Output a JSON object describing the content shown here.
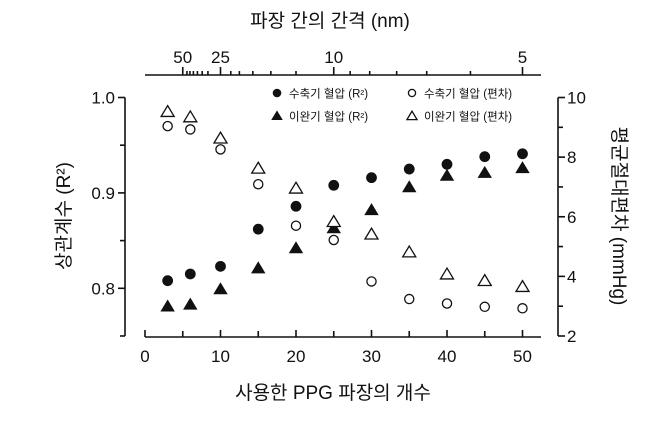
{
  "chart_data": {
    "type": "scatter",
    "title": "",
    "xlabel": "사용한 PPG 파장의 개수",
    "x2label": "파장 간의 간격 (nm)",
    "ylabel": "상관계수 (R²)",
    "y2label": "평균절대편차 (mmHg)",
    "xlim": [
      0,
      52
    ],
    "ylim": [
      0.75,
      1.0
    ],
    "y2lim": [
      2,
      10
    ],
    "x_ticks": [
      0,
      10,
      20,
      30,
      40,
      50
    ],
    "x_minor_ticks": [
      5,
      15,
      25,
      35,
      45
    ],
    "y_ticks": [
      "0.8",
      "0.9",
      "1.0"
    ],
    "y_minor_ticks": [
      0.75,
      0.85,
      0.95
    ],
    "y2_ticks": [
      2,
      4,
      6,
      8,
      10
    ],
    "y2_minor_ticks": [
      3,
      5,
      7,
      9
    ],
    "x2_relation": "x2 = 250 / x",
    "x2_ticks": [
      50,
      25,
      10,
      5
    ],
    "x2_minor_ticks": [
      45,
      42,
      39,
      36,
      33,
      30,
      22,
      20,
      17.5,
      15,
      12.5,
      9.2,
      8.4,
      7.5,
      6.7,
      5.8
    ],
    "grid": false,
    "legend_placement": "top-right",
    "x": [
      3,
      6,
      10,
      15,
      20,
      25,
      30,
      35,
      40,
      45,
      50
    ],
    "series": [
      {
        "name": "수축기 혈압 (R²)",
        "axis": "left",
        "marker": "filled-circle",
        "color": "#111111",
        "values": [
          0.808,
          0.815,
          0.823,
          0.862,
          0.886,
          0.908,
          0.916,
          0.925,
          0.93,
          0.938,
          0.941
        ]
      },
      {
        "name": "이완기 혈압 (R²)",
        "axis": "left",
        "marker": "filled-triangle",
        "color": "#111111",
        "values": [
          0.781,
          0.783,
          0.799,
          0.821,
          0.842,
          0.863,
          0.882,
          0.906,
          0.918,
          0.921,
          0.926
        ]
      },
      {
        "name": "수축기 혈압 (편차)",
        "axis": "right",
        "marker": "open-circle",
        "color": "#111111",
        "values": [
          9.04,
          8.93,
          8.26,
          7.09,
          5.7,
          5.22,
          3.83,
          3.24,
          3.09,
          2.98,
          2.93
        ]
      },
      {
        "name": "이완기 혈압 (편차)",
        "axis": "right",
        "marker": "open-triangle",
        "color": "#111111",
        "values": [
          9.52,
          9.34,
          8.63,
          7.62,
          6.95,
          5.83,
          5.41,
          4.81,
          4.07,
          3.85,
          3.65
        ]
      }
    ]
  }
}
